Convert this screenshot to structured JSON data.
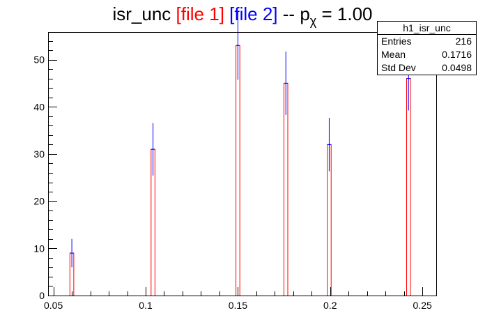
{
  "title": {
    "prefix": "isr_unc",
    "file1": "[file 1]",
    "file2": "[file 2]",
    "dashes": "--",
    "p": "p",
    "chi": "χ",
    "suffix": "= 1.00"
  },
  "stats": {
    "name": "h1_isr_unc",
    "rows": [
      {
        "label": "Entries",
        "value": "216"
      },
      {
        "label": "Mean",
        "value": "0.1716"
      },
      {
        "label": "Std Dev",
        "value": "0.0498"
      }
    ]
  },
  "colors": {
    "file1": "#ff0000",
    "file2": "#0000ff",
    "axis": "#000000"
  },
  "chart_data": {
    "type": "bar",
    "subtype": "histogram-overlay",
    "xlim": [
      0.0475,
      0.2575
    ],
    "ylim": [
      0,
      55.7
    ],
    "xticks": [
      0.05,
      0.1,
      0.15,
      0.2,
      0.25
    ],
    "xtick_labels": [
      "0.05",
      "0.1",
      "0.15",
      "0.2",
      "0.25"
    ],
    "yticks": [
      0,
      10,
      20,
      30,
      40,
      50
    ],
    "ytick_labels": [
      "0",
      "10",
      "20",
      "30",
      "40",
      "50"
    ],
    "bin_width": 0.0021,
    "series": [
      {
        "name": "file 1",
        "style": "histogram-outline",
        "color": "#ff0000",
        "x": [
          0.06,
          0.104,
          0.15,
          0.176,
          0.1995,
          0.2425
        ],
        "values": [
          9,
          31,
          53,
          45,
          32,
          46
        ]
      },
      {
        "name": "file 2",
        "style": "errorbars",
        "color": "#0000ff",
        "x": [
          0.06,
          0.104,
          0.15,
          0.176,
          0.1995,
          0.2425
        ],
        "values": [
          9,
          31,
          53,
          45,
          32,
          46
        ],
        "errors": [
          3,
          5.57,
          7.28,
          6.71,
          5.66,
          6.78
        ]
      }
    ]
  }
}
